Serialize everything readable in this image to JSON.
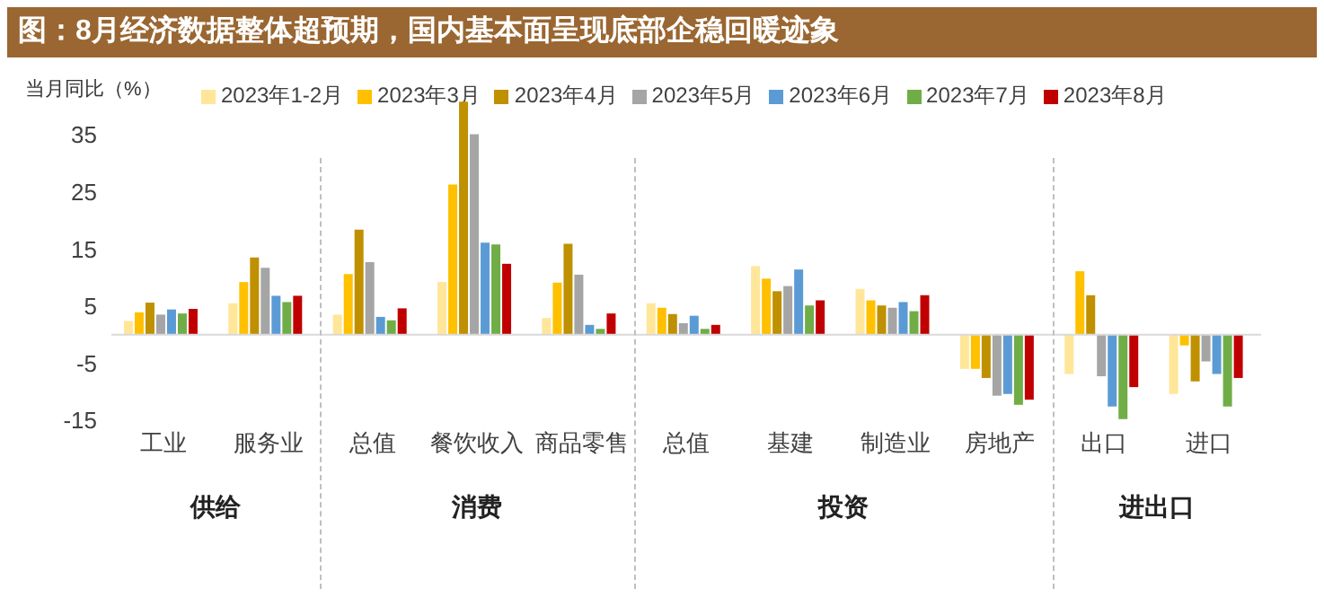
{
  "chart_data": {
    "type": "bar",
    "title": "图：8月经济数据整体超预期，国内基本面呈现底部企稳回暖迹象",
    "ylabel": "当月同比（%）",
    "categories": [
      "工业",
      "服务业",
      "总值",
      "餐饮收入",
      "商品零售",
      "总值",
      "基建",
      "制造业",
      "房地产",
      "出口",
      "进口"
    ],
    "series": [
      {
        "name": "2023年1-2月",
        "color": "#ffe699",
        "values": [
          2.4,
          5.5,
          3.5,
          9.2,
          2.9,
          5.5,
          12.0,
          8.0,
          -6.0,
          -6.9,
          -10.4
        ]
      },
      {
        "name": "2023年3月",
        "color": "#ffc000",
        "values": [
          3.9,
          9.2,
          10.6,
          26.3,
          9.1,
          4.7,
          9.8,
          6.0,
          -6.0,
          11.1,
          -1.9
        ]
      },
      {
        "name": "2023年4月",
        "color": "#bf9000",
        "values": [
          5.6,
          13.5,
          18.4,
          40.8,
          15.9,
          3.6,
          7.6,
          5.1,
          -7.6,
          6.9,
          -8.2
        ]
      },
      {
        "name": "2023年5月",
        "color": "#a5a5a5",
        "values": [
          3.5,
          11.7,
          12.7,
          35.1,
          10.5,
          2.0,
          8.5,
          4.7,
          -10.7,
          -7.3,
          -4.7
        ]
      },
      {
        "name": "2023年6月",
        "color": "#5b9bd5",
        "values": [
          4.4,
          6.8,
          3.1,
          16.1,
          1.7,
          3.3,
          11.4,
          5.7,
          -10.4,
          -12.6,
          -6.9
        ]
      },
      {
        "name": "2023年7月",
        "color": "#70ad47",
        "values": [
          3.7,
          5.7,
          2.5,
          15.8,
          1.0,
          1.0,
          5.1,
          4.1,
          -12.3,
          -14.8,
          -12.6
        ]
      },
      {
        "name": "2023年8月",
        "color": "#c00000",
        "values": [
          4.5,
          6.8,
          4.6,
          12.4,
          3.7,
          1.7,
          6.0,
          6.9,
          -11.4,
          -9.2,
          -7.6
        ]
      }
    ],
    "ylim": [
      -15,
      41
    ],
    "yticks": [
      35,
      25,
      15,
      5,
      -5,
      -15
    ],
    "legend": "top",
    "annotations": [
      "供给",
      "消费",
      "投资",
      "进出口"
    ]
  }
}
